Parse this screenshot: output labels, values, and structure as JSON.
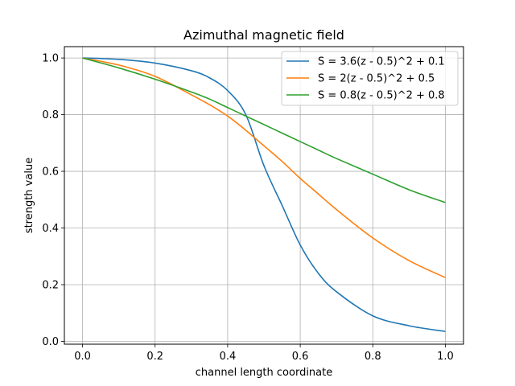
{
  "chart_data": {
    "type": "line",
    "title": "Azimuthal magnetic field",
    "xlabel": "channel length coordinate",
    "ylabel": "strength value",
    "xlim": [
      -0.05,
      1.05
    ],
    "ylim": [
      -0.01,
      1.04
    ],
    "xticks": [
      "0.0",
      "0.2",
      "0.4",
      "0.6",
      "0.8",
      "1.0"
    ],
    "yticks": [
      "0.0",
      "0.2",
      "0.4",
      "0.6",
      "0.8",
      "1.0"
    ],
    "grid": true,
    "legend_position": "upper-right",
    "x": [
      0.0,
      0.1,
      0.2,
      0.3,
      0.35,
      0.4,
      0.45,
      0.5,
      0.55,
      0.6,
      0.65,
      0.7,
      0.8,
      0.9,
      1.0
    ],
    "series": [
      {
        "name": "S = 3.6(z - 0.5)^2 + 0.1",
        "color": "#1f77b4",
        "values": [
          1.0,
          0.995,
          0.982,
          0.955,
          0.93,
          0.885,
          0.8,
          0.62,
          0.48,
          0.34,
          0.24,
          0.175,
          0.09,
          0.055,
          0.035
        ]
      },
      {
        "name": "S = 2(z - 0.5)^2 + 0.5",
        "color": "#ff7f0e",
        "values": [
          1.0,
          0.975,
          0.935,
          0.87,
          0.835,
          0.795,
          0.745,
          0.69,
          0.635,
          0.575,
          0.52,
          0.465,
          0.365,
          0.285,
          0.225
        ]
      },
      {
        "name": "S = 0.8(z - 0.5)^2 + 0.8",
        "color": "#2ca02c",
        "values": [
          1.0,
          0.965,
          0.925,
          0.88,
          0.855,
          0.825,
          0.795,
          0.765,
          0.735,
          0.705,
          0.675,
          0.645,
          0.59,
          0.535,
          0.49
        ]
      }
    ]
  }
}
